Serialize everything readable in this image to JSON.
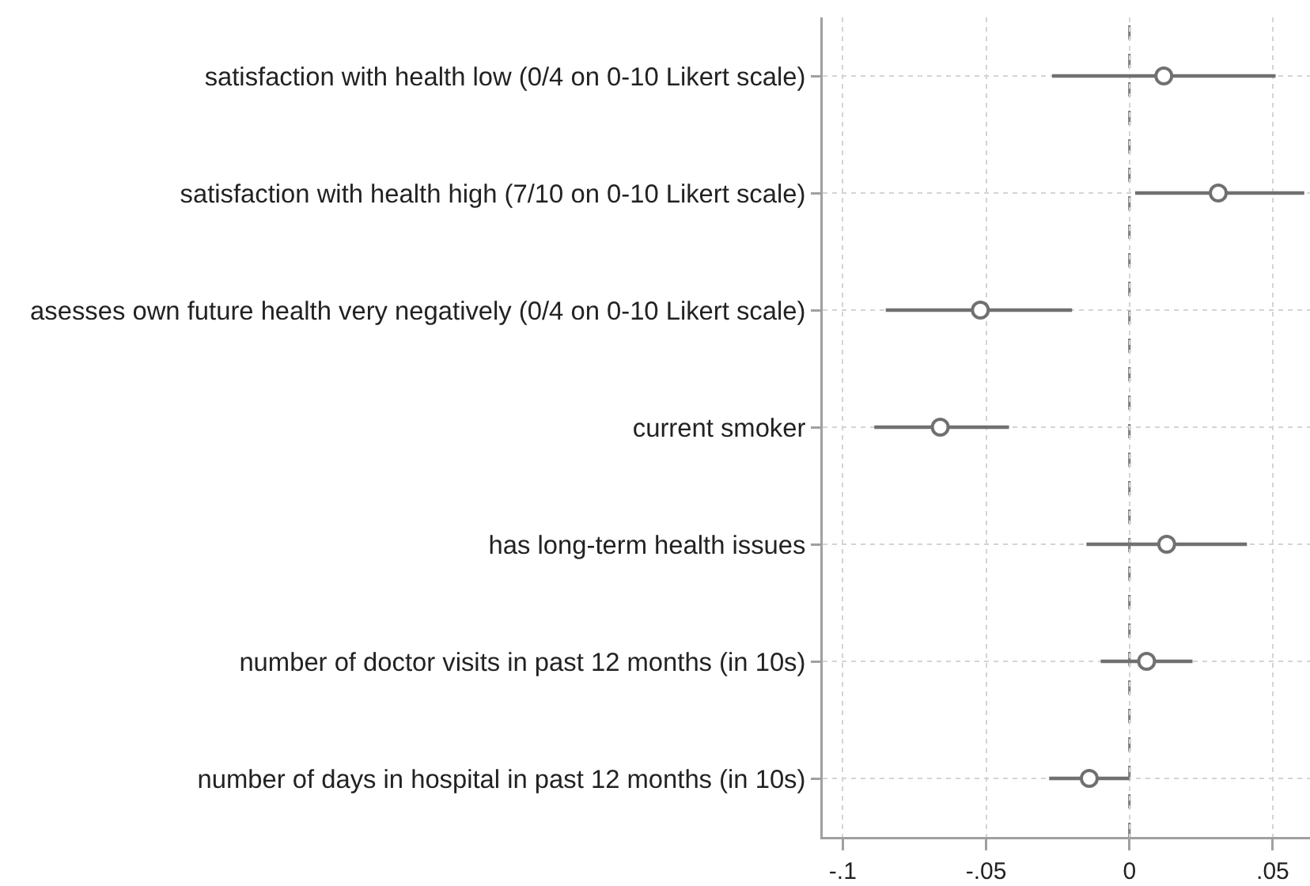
{
  "chart_data": {
    "type": "scatter",
    "orientation": "horizontal",
    "categories": [
      "satisfaction with health low (0/4 on 0-10 Likert scale)",
      "satisfaction with health high (7/10 on 0-10 Likert scale)",
      "asesses own future health very negatively (0/4 on 0-10 Likert scale)",
      "current smoker",
      "has long-term health issues",
      "number of doctor visits in past 12 months (in 10s)",
      "number of days in hospital in past 12 months (in 10s)"
    ],
    "values": [
      0.012,
      0.031,
      -0.052,
      -0.066,
      0.013,
      0.006,
      -0.014
    ],
    "errors": [
      [
        -0.027,
        0.051
      ],
      [
        0.002,
        0.061
      ],
      [
        -0.085,
        -0.02
      ],
      [
        -0.089,
        -0.042
      ],
      [
        -0.015,
        0.041
      ],
      [
        -0.01,
        0.022
      ],
      [
        -0.028,
        0.0
      ]
    ],
    "color": "#707070",
    "marker": "circle",
    "xlim": [
      -0.107,
      0.063
    ],
    "xticks": [
      {
        "value": -0.1,
        "label": "-.1"
      },
      {
        "value": -0.05,
        "label": "-.05"
      },
      0,
      {
        "value": 0.05,
        "label": ".05"
      }
    ],
    "grid": true,
    "ref_lines": [
      {
        "axis": "x",
        "value": 0,
        "line_style": "dashed",
        "color": "#808080"
      }
    ]
  }
}
